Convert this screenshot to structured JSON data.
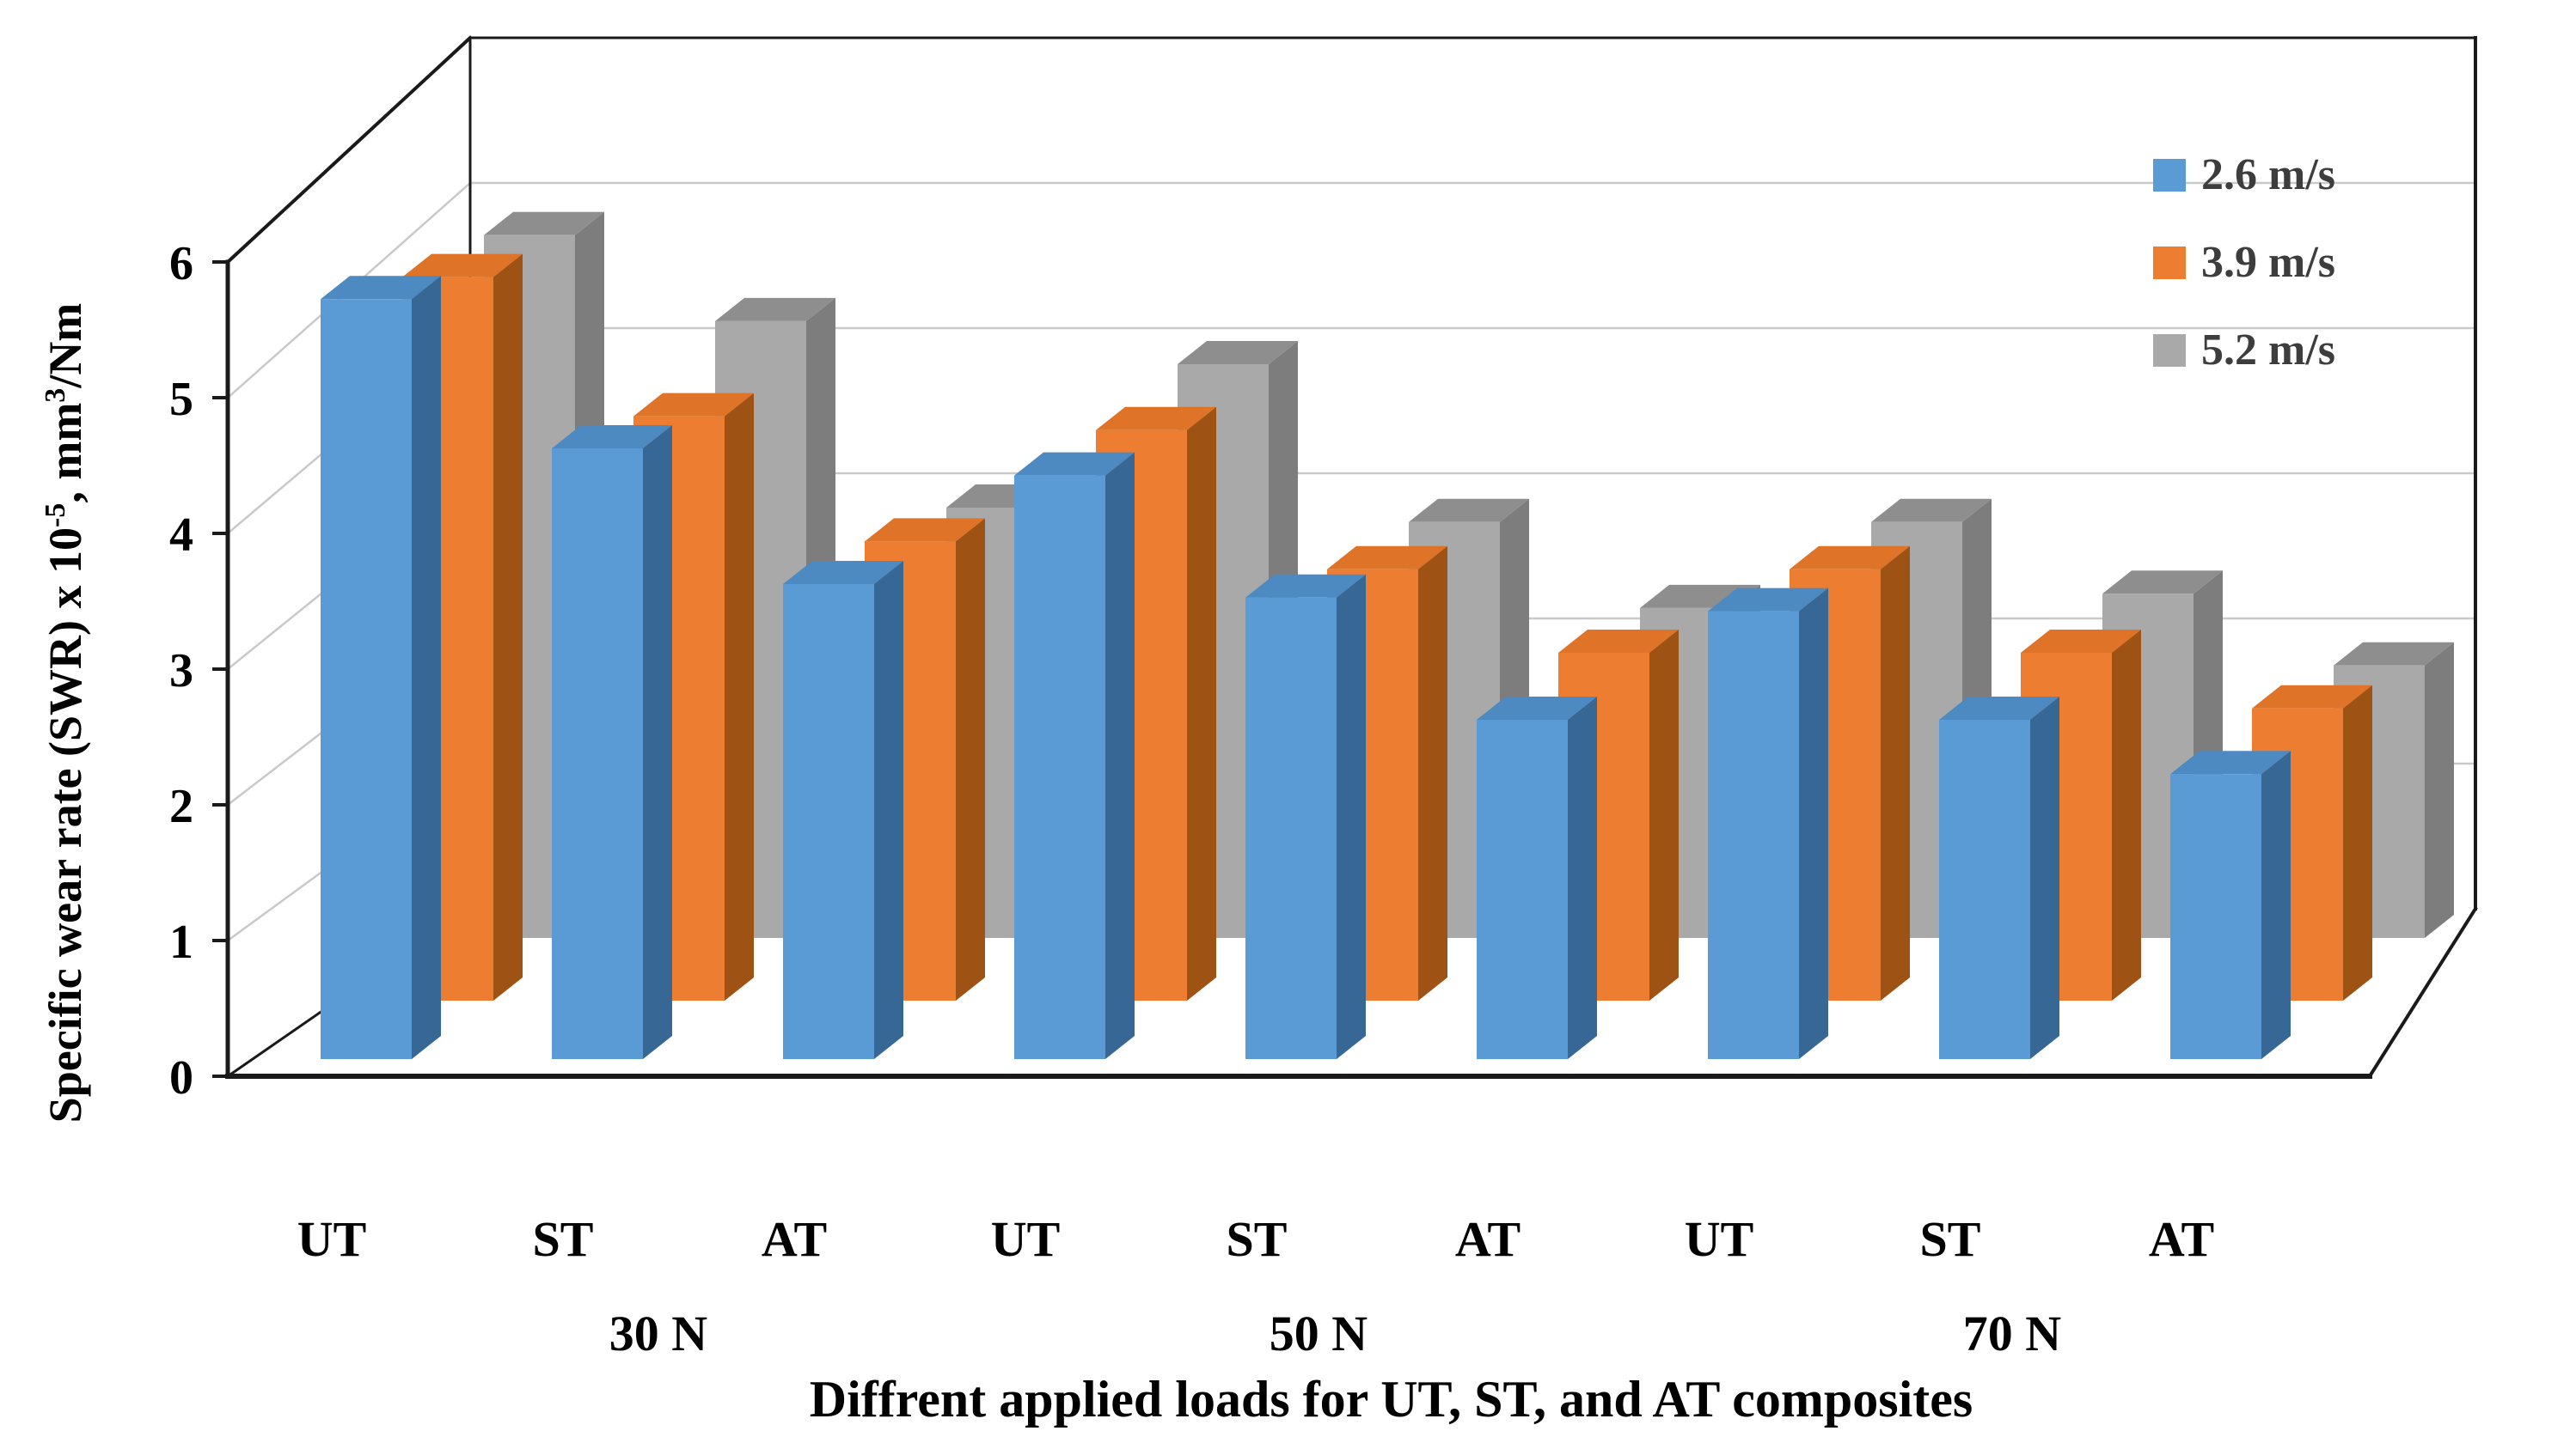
{
  "chart_data": {
    "type": "bar",
    "projection": "3d-column",
    "title": "Diffrent applied loads for UT, ST, and AT composites",
    "xlabel": "Diffrent applied loads for UT, ST, and AT composites",
    "ylabel_segments": [
      {
        "t": "Specific wear rate (SWR) x 10",
        "sup": false
      },
      {
        "t": "-5",
        "sup": true
      },
      {
        "t": ", mm",
        "sup": false
      },
      {
        "t": "3",
        "sup": true
      },
      {
        "t": "/Nm",
        "sup": false
      }
    ],
    "categories": [
      "UT",
      "ST",
      "AT",
      "UT",
      "ST",
      "AT",
      "UT",
      "ST",
      "AT"
    ],
    "group_labels": [
      "30 N",
      "50 N",
      "70 N"
    ],
    "yticks": [
      0,
      1,
      2,
      3,
      4,
      5,
      6
    ],
    "ylim": [
      0,
      6
    ],
    "grid": true,
    "legend_position": "top-right",
    "series": [
      {
        "name": "2.6 m/s",
        "color": "#5B9BD5",
        "top_color": "#4E8AC2",
        "side_color": "#376795",
        "values": [
          5.6,
          4.5,
          3.5,
          4.3,
          3.4,
          2.5,
          3.3,
          2.5,
          2.1
        ]
      },
      {
        "name": "3.9 m/s",
        "color": "#ED7D31",
        "top_color": "#DF7327",
        "side_color": "#9E5314",
        "values": [
          5.2,
          4.2,
          3.3,
          4.1,
          3.1,
          2.5,
          3.1,
          2.5,
          2.1
        ]
      },
      {
        "name": "5.2 m/s",
        "color": "#A9A9A9",
        "top_color": "#8E8E8E",
        "side_color": "#7D7D7D",
        "values": [
          4.9,
          4.3,
          3.0,
          4.0,
          2.9,
          2.3,
          2.9,
          2.4,
          1.9
        ]
      }
    ],
    "axis_color": "#1a1a1a",
    "gridline_color": "#c9c9c9",
    "text_color": "#000000",
    "legend_text_color": "#3d3d3d"
  },
  "legend": {
    "items": [
      {
        "label": "2.6 m/s"
      },
      {
        "label": "3.9 m/s"
      },
      {
        "label": "5.2 m/s"
      }
    ]
  }
}
